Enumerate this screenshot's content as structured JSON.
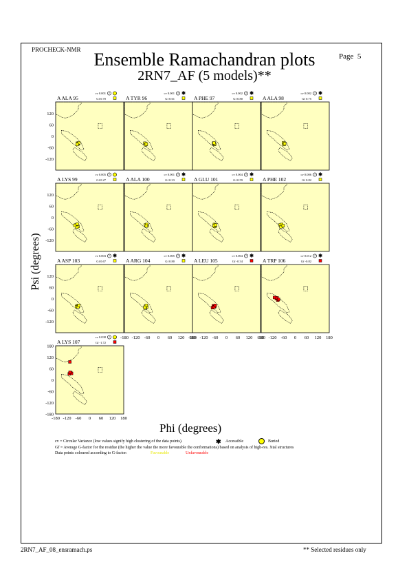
{
  "header": {
    "program": "PROCHECK-NMR",
    "title": "Ensemble Ramachandran plots",
    "subtitle": "2RN7_AF (5 models)**",
    "page_label": "Page",
    "page_number": "5"
  },
  "footer": {
    "filename": "2RN7_AF_08_ensramach.ps",
    "note": "** Selected residues only"
  },
  "legend": {
    "cv_text": "cv = Circular Variance (low values signify high clustering of the data points).",
    "accessible_label": "Accessible",
    "buried_label": "Buried",
    "gf_text": "Gf = Average G-factor for the residue (the higher the value the more favourable the conformations)  based on analysis of high-res. Xtal structures",
    "colour_text": "Data points coloured according to G-factor:",
    "favourable_label": "Favourable",
    "unfavourable_label": "Unfavourable"
  },
  "colors": {
    "panel_bg": "#ffffc0",
    "favourable": "#ffff00",
    "unfavourable": "#ff0000",
    "region_outline": "#000000"
  },
  "chart_data": {
    "type": "scatter",
    "xlabel": "Phi (degrees)",
    "ylabel": "Psi (degrees)",
    "xlim": [
      -180,
      180
    ],
    "ylim": [
      -180,
      180
    ],
    "xticks": [
      "-180",
      "-120",
      "-60",
      "0",
      "60",
      "120",
      "180"
    ],
    "yticks": [
      "180",
      "120",
      "60",
      "0",
      "-60",
      "-120",
      "-180"
    ],
    "panels": [
      {
        "residue": "A ALA 95",
        "cv": "cv 0.001",
        "gf": "Gf  0.70",
        "acc": "buried",
        "points": [
          [
            -65,
            -38
          ],
          [
            -60,
            -40
          ],
          [
            -63,
            -42
          ],
          [
            -58,
            -36
          ],
          [
            -66,
            -44
          ]
        ]
      },
      {
        "residue": "A TYR 96",
        "cv": "cv 0.001",
        "gf": "Gf  0.61",
        "acc": "accessible",
        "points": [
          [
            -70,
            -40
          ],
          [
            -66,
            -44
          ],
          [
            -72,
            -38
          ],
          [
            -68,
            -46
          ],
          [
            -64,
            -42
          ]
        ]
      },
      {
        "residue": "A PHE 97",
        "cv": "cv 0.002",
        "gf": "Gf  0.80",
        "acc": "accessible",
        "points": [
          [
            -66,
            -40
          ],
          [
            -64,
            -44
          ],
          [
            -68,
            -38
          ],
          [
            -62,
            -42
          ],
          [
            -66,
            -36
          ]
        ]
      },
      {
        "residue": "A ALA 98",
        "cv": "cv 0.002",
        "gf": "Gf  0.75",
        "acc": "accessible",
        "points": [
          [
            -60,
            -38
          ],
          [
            -58,
            -42
          ],
          [
            -62,
            -36
          ],
          [
            -60,
            -44
          ],
          [
            -56,
            -40
          ]
        ]
      },
      {
        "residue": "A LYS 99",
        "cv": "cv 0.005",
        "gf": "Gf  0.27",
        "acc": "buried",
        "points": [
          [
            -72,
            -40
          ],
          [
            -62,
            -48
          ],
          [
            -68,
            -52
          ],
          [
            -78,
            -42
          ],
          [
            -66,
            -36
          ]
        ]
      },
      {
        "residue": "A ALA 100",
        "cv": "cv 0.001",
        "gf": "Gf  0.33",
        "acc": "accessible",
        "points": [
          [
            -65,
            -42
          ],
          [
            -60,
            -44
          ],
          [
            -68,
            -40
          ],
          [
            -62,
            -38
          ],
          [
            -64,
            -46
          ]
        ]
      },
      {
        "residue": "A GLU 101",
        "cv": "cv 0.004",
        "gf": "Gf  0.59",
        "acc": "accessible",
        "points": [
          [
            -64,
            -38
          ],
          [
            -60,
            -42
          ],
          [
            -62,
            -48
          ],
          [
            -66,
            -44
          ],
          [
            -58,
            -40
          ]
        ]
      },
      {
        "residue": "A PHE 102",
        "cv": "cv 0.006",
        "gf": "Gf  0.82",
        "acc": "accessible",
        "points": [
          [
            -80,
            -40
          ],
          [
            -68,
            -46
          ],
          [
            -76,
            -50
          ],
          [
            -72,
            -38
          ],
          [
            -64,
            -44
          ]
        ]
      },
      {
        "residue": "A ASP 103",
        "cv": "cv 0.003",
        "gf": "Gf  0.67",
        "acc": "accessible",
        "points": [
          [
            -66,
            -38
          ],
          [
            -60,
            -40
          ],
          [
            -70,
            -42
          ],
          [
            -62,
            -44
          ],
          [
            -58,
            -36
          ]
        ]
      },
      {
        "residue": "A ARG 104",
        "cv": "cv 0.005",
        "gf": "Gf  0.80",
        "acc": "accessible",
        "points": [
          [
            -68,
            -40
          ],
          [
            -62,
            -44
          ],
          [
            -70,
            -50
          ],
          [
            -64,
            -36
          ],
          [
            -72,
            -46
          ]
        ]
      },
      {
        "residue": "A LEU 105",
        "cv": "cv 0.004",
        "gf": "Gf -0.34",
        "acc": "accessible",
        "points": [
          [
            -70,
            -38
          ],
          [
            -62,
            -42
          ],
          [
            -74,
            -48
          ],
          [
            -66,
            -44
          ],
          [
            -60,
            -36
          ]
        ]
      },
      {
        "residue": "A TRP 106",
        "cv": "cv 0.012",
        "gf": "Gf -0.82",
        "acc": "accessible",
        "points": [
          [
            -100,
            0
          ],
          [
            -92,
            -8
          ],
          [
            -110,
            6
          ],
          [
            -96,
            4
          ],
          [
            -88,
            -4
          ]
        ]
      },
      {
        "residue": "A LYS 107",
        "cv": "cv 0.038",
        "gf": "Gf -1.72",
        "acc": "buried",
        "points": [
          [
            -105,
            95
          ],
          [
            -100,
            38
          ],
          [
            -108,
            32
          ],
          [
            -96,
            34
          ],
          [
            -104,
            40
          ]
        ]
      }
    ]
  }
}
